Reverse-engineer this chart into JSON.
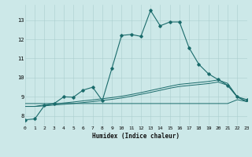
{
  "xlabel": "Humidex (Indice chaleur)",
  "bg_color": "#cce8e8",
  "line_color": "#1a6b6b",
  "xlim": [
    0,
    23
  ],
  "ylim": [
    7.5,
    13.8
  ],
  "yticks": [
    8,
    9,
    10,
    11,
    12,
    13
  ],
  "xticks": [
    0,
    1,
    2,
    3,
    4,
    5,
    6,
    7,
    8,
    9,
    10,
    11,
    12,
    13,
    14,
    15,
    16,
    17,
    18,
    19,
    20,
    21,
    22,
    23
  ],
  "line1_x": [
    0,
    1,
    2,
    3,
    4,
    5,
    6,
    7,
    8,
    9,
    10,
    11,
    12,
    13,
    14,
    15,
    16,
    17,
    18,
    19,
    20,
    21,
    22,
    23
  ],
  "line1_y": [
    7.8,
    7.85,
    8.55,
    8.65,
    9.0,
    8.98,
    9.35,
    9.5,
    8.8,
    10.5,
    12.2,
    12.25,
    12.15,
    13.5,
    12.7,
    12.9,
    12.9,
    11.55,
    10.7,
    10.2,
    9.9,
    9.6,
    9.0,
    8.85
  ],
  "line2_x": [
    0,
    1,
    2,
    3,
    4,
    5,
    6,
    7,
    8,
    9,
    10,
    11,
    12,
    13,
    14,
    15,
    16,
    17,
    18,
    19,
    20,
    21,
    22,
    23
  ],
  "line2_y": [
    8.65,
    8.65,
    8.65,
    8.65,
    8.65,
    8.65,
    8.65,
    8.65,
    8.65,
    8.65,
    8.65,
    8.65,
    8.65,
    8.65,
    8.65,
    8.65,
    8.65,
    8.65,
    8.65,
    8.65,
    8.65,
    8.65,
    8.85,
    8.75
  ],
  "line3_x": [
    0,
    1,
    2,
    3,
    4,
    5,
    6,
    7,
    8,
    9,
    10,
    11,
    12,
    13,
    14,
    15,
    16,
    17,
    18,
    19,
    20,
    21,
    22,
    23
  ],
  "line3_y": [
    8.5,
    8.5,
    8.58,
    8.63,
    8.68,
    8.73,
    8.79,
    8.84,
    8.9,
    8.96,
    9.03,
    9.12,
    9.22,
    9.33,
    9.44,
    9.55,
    9.65,
    9.7,
    9.75,
    9.8,
    9.88,
    9.7,
    9.0,
    8.75
  ],
  "line4_x": [
    0,
    1,
    2,
    3,
    4,
    5,
    6,
    7,
    8,
    9,
    10,
    11,
    12,
    13,
    14,
    15,
    16,
    17,
    18,
    19,
    20,
    21,
    22,
    23
  ],
  "line4_y": [
    8.5,
    8.5,
    8.53,
    8.57,
    8.61,
    8.65,
    8.7,
    8.75,
    8.81,
    8.87,
    8.94,
    9.03,
    9.13,
    9.23,
    9.34,
    9.45,
    9.54,
    9.59,
    9.64,
    9.69,
    9.77,
    9.6,
    8.98,
    8.75
  ]
}
